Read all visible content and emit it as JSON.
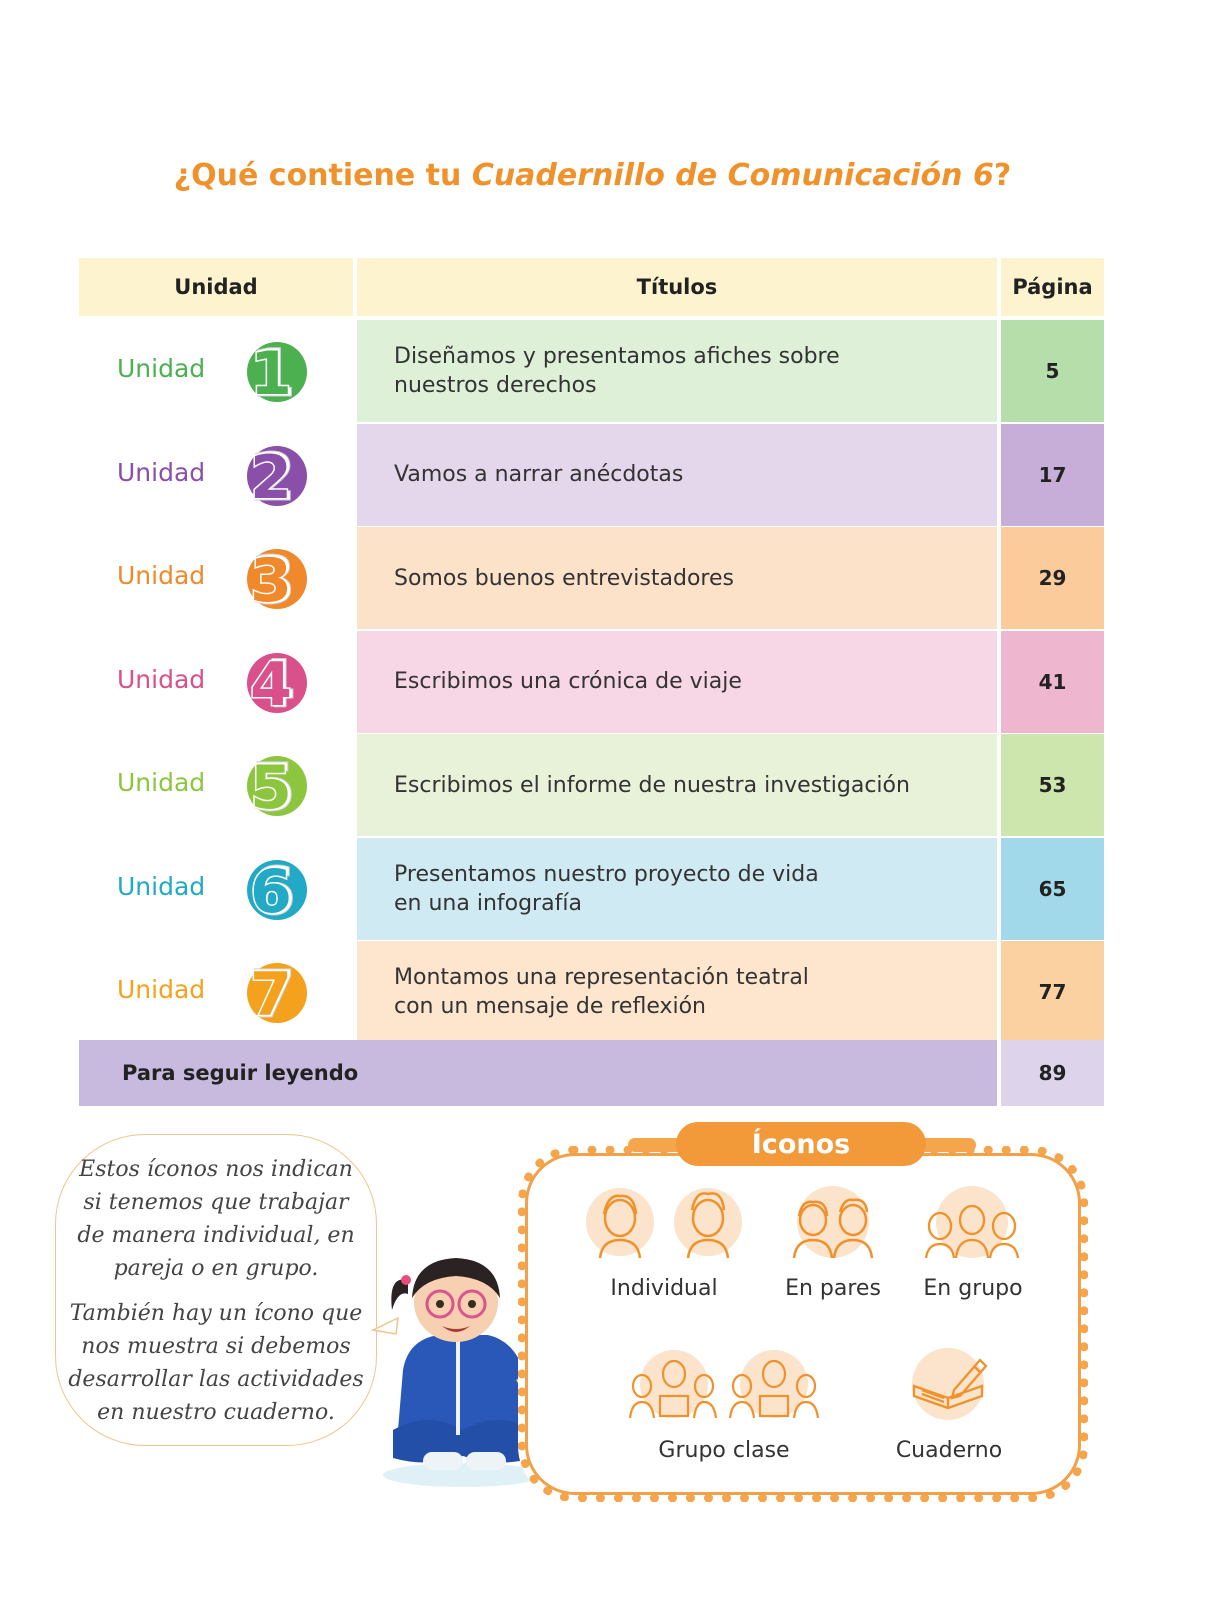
{
  "title": {
    "prefix": "¿Qué contiene tu ",
    "italic": "Cuadernillo de Comunicación 6",
    "suffix": "?"
  },
  "table": {
    "headers": {
      "unit": "Unidad",
      "titles": "Títulos",
      "page": "Página"
    },
    "rows": [
      {
        "label": "Unidad",
        "number": "1",
        "title_line1": "Diseñamos y presentamos afiches sobre",
        "title_line2": "nuestros derechos",
        "page": "5",
        "color": "#4caf50",
        "title_bg": "#dff0d8",
        "page_bg": "#b6deaa"
      },
      {
        "label": "Unidad",
        "number": "2",
        "title_line1": "Vamos a narrar anécdotas",
        "title_line2": "",
        "page": "17",
        "color": "#8a4fa8",
        "title_bg": "#e4d7ec",
        "page_bg": "#c6aed8"
      },
      {
        "label": "Unidad",
        "number": "3",
        "title_line1": "Somos buenos entrevistadores",
        "title_line2": "",
        "page": "29",
        "color": "#f0892b",
        "title_bg": "#fde2ca",
        "page_bg": "#fbcb9c"
      },
      {
        "label": "Unidad",
        "number": "4",
        "title_line1": "Escribimos una crónica de viaje",
        "title_line2": "",
        "page": "41",
        "color": "#d9508a",
        "title_bg": "#f7d6e5",
        "page_bg": "#eeb6cf"
      },
      {
        "label": "Unidad",
        "number": "5",
        "title_line1": "Escribimos el informe de nuestra investigación",
        "title_line2": "",
        "page": "53",
        "color": "#8cc63f",
        "title_bg": "#e7f2d8",
        "page_bg": "#cde6ae"
      },
      {
        "label": "Unidad",
        "number": "6",
        "title_line1": "Presentamos nuestro proyecto de vida",
        "title_line2": "en una infografía",
        "page": "65",
        "color": "#22a9c6",
        "title_bg": "#cfeaf2",
        "page_bg": "#a2d9ea"
      },
      {
        "label": "Unidad",
        "number": "7",
        "title_line1": "Montamos una representación teatral",
        "title_line2": "con un mensaje de reflexión",
        "page": "77",
        "color": "#f4a21d",
        "title_bg": "#fde6cd",
        "page_bg": "#fbd1a1"
      }
    ],
    "extra": {
      "label": "Para seguir leyendo",
      "page": "89"
    }
  },
  "bubble": {
    "p1": [
      "Estos íconos nos indican",
      "si tenemos que trabajar",
      "de manera individual, en",
      "pareja o en grupo."
    ],
    "p2": [
      "También hay un ícono que",
      "nos muestra si debemos",
      "desarrollar las actividades",
      "en nuestro cuaderno."
    ]
  },
  "icons": {
    "title": "Íconos",
    "items": [
      {
        "name": "individual-icon",
        "label": "Individual"
      },
      {
        "name": "en-pares-icon",
        "label": "En pares"
      },
      {
        "name": "en-grupo-icon",
        "label": "En grupo"
      },
      {
        "name": "grupo-clase-icon",
        "label": "Grupo clase"
      },
      {
        "name": "cuaderno-icon",
        "label": "Cuaderno"
      }
    ]
  },
  "colors": {
    "accent": "#f0922b",
    "header_bg": "#fdf3cf",
    "extra_bg": "#c8bade"
  }
}
